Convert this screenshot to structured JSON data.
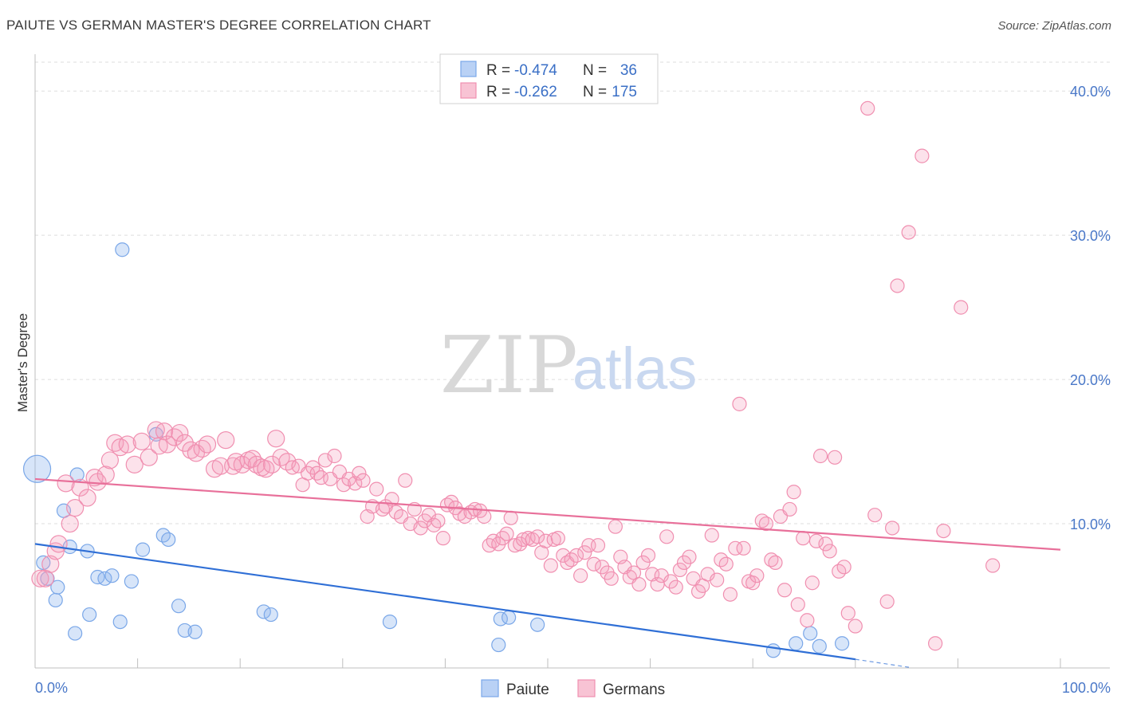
{
  "header": {
    "title": "PAIUTE VS GERMAN MASTER'S DEGREE CORRELATION CHART",
    "source": "Source: ZipAtlas.com"
  },
  "watermark": {
    "zip": "ZIP",
    "atlas": "atlas"
  },
  "legend": {
    "r_label": "R = ",
    "n_label": "N = ",
    "rows": [
      {
        "series": "Paiute",
        "r": "-0.474",
        "n": "36",
        "color": "#7aa7e8",
        "fill": "#b9d1f5"
      },
      {
        "series": "Germans",
        "r": "-0.262",
        "n": "175",
        "color": "#f08fb0",
        "fill": "#f8c3d4"
      }
    ]
  },
  "chart_data": {
    "type": "scatter",
    "title": "PAIUTE VS GERMAN MASTER'S DEGREE CORRELATION CHART",
    "xlabel": "",
    "ylabel": "Master's Degree",
    "xlim": [
      0,
      100
    ],
    "ylim": [
      0,
      42
    ],
    "x_ticks": [
      "0.0%",
      "100.0%"
    ],
    "y_ticks": [
      {
        "value": 10,
        "label": "10.0%"
      },
      {
        "value": 20,
        "label": "20.0%"
      },
      {
        "value": 30,
        "label": "30.0%"
      },
      {
        "value": 40,
        "label": "40.0%"
      }
    ],
    "grid": "horizontal dashed",
    "legend_position": "top-center",
    "series": [
      {
        "name": "Paiute",
        "color": "#6e9ee6",
        "trend": {
          "x": [
            0,
            80
          ],
          "y": [
            8.6,
            0.6
          ],
          "dashed_to": [
            100,
            -0.5
          ],
          "color": "#2f6fd6"
        },
        "points": [
          [
            0.2,
            13.8
          ],
          [
            0.8,
            7.3
          ],
          [
            1.2,
            6.2
          ],
          [
            2.0,
            4.7
          ],
          [
            2.2,
            5.6
          ],
          [
            2.8,
            10.9
          ],
          [
            3.4,
            8.4
          ],
          [
            3.9,
            2.4
          ],
          [
            4.1,
            13.4
          ],
          [
            5.1,
            8.1
          ],
          [
            5.3,
            3.7
          ],
          [
            6.1,
            6.3
          ],
          [
            6.8,
            6.2
          ],
          [
            7.5,
            6.4
          ],
          [
            8.3,
            3.2
          ],
          [
            8.5,
            29.0
          ],
          [
            9.4,
            6.0
          ],
          [
            10.5,
            8.2
          ],
          [
            11.8,
            16.2
          ],
          [
            12.5,
            9.2
          ],
          [
            13.0,
            8.9
          ],
          [
            14.0,
            4.3
          ],
          [
            14.6,
            2.6
          ],
          [
            15.6,
            2.5
          ],
          [
            22.3,
            3.9
          ],
          [
            23.0,
            3.7
          ],
          [
            34.6,
            3.2
          ],
          [
            45.2,
            1.6
          ],
          [
            45.4,
            3.4
          ],
          [
            46.2,
            3.5
          ],
          [
            49.0,
            3.0
          ],
          [
            72.0,
            1.2
          ],
          [
            74.2,
            1.7
          ],
          [
            75.6,
            2.4
          ],
          [
            76.5,
            1.5
          ],
          [
            78.7,
            1.7
          ]
        ]
      },
      {
        "name": "Germans",
        "color": "#f08fb0",
        "trend": {
          "x": [
            0,
            100
          ],
          "y": [
            13.1,
            8.2
          ],
          "color": "#e8709a"
        },
        "points": [
          [
            0.5,
            6.2
          ],
          [
            1.0,
            6.2
          ],
          [
            1.5,
            7.2
          ],
          [
            2.0,
            8.1
          ],
          [
            2.3,
            8.6
          ],
          [
            3.0,
            12.8
          ],
          [
            3.4,
            10.0
          ],
          [
            3.9,
            11.1
          ],
          [
            4.4,
            12.5
          ],
          [
            5.1,
            11.8
          ],
          [
            5.8,
            13.2
          ],
          [
            6.1,
            12.9
          ],
          [
            6.9,
            13.4
          ],
          [
            7.3,
            14.4
          ],
          [
            7.8,
            15.6
          ],
          [
            8.3,
            15.3
          ],
          [
            9.0,
            15.5
          ],
          [
            9.7,
            14.1
          ],
          [
            10.4,
            15.7
          ],
          [
            11.1,
            14.6
          ],
          [
            11.8,
            16.5
          ],
          [
            12.1,
            15.4
          ],
          [
            12.6,
            16.4
          ],
          [
            12.9,
            15.5
          ],
          [
            13.6,
            16.0
          ],
          [
            14.1,
            16.3
          ],
          [
            14.6,
            15.6
          ],
          [
            15.2,
            15.1
          ],
          [
            15.7,
            14.9
          ],
          [
            16.3,
            15.2
          ],
          [
            16.8,
            15.5
          ],
          [
            17.5,
            13.8
          ],
          [
            18.1,
            14.0
          ],
          [
            18.6,
            15.8
          ],
          [
            19.3,
            14.0
          ],
          [
            19.6,
            14.3
          ],
          [
            20.2,
            14.1
          ],
          [
            20.8,
            14.4
          ],
          [
            21.2,
            14.5
          ],
          [
            21.6,
            14.1
          ],
          [
            22.1,
            13.9
          ],
          [
            22.5,
            13.8
          ],
          [
            23.1,
            14.1
          ],
          [
            23.5,
            15.9
          ],
          [
            24.0,
            14.6
          ],
          [
            24.6,
            14.3
          ],
          [
            25.1,
            13.9
          ],
          [
            25.7,
            14.0
          ],
          [
            26.1,
            12.7
          ],
          [
            26.6,
            13.5
          ],
          [
            27.1,
            13.9
          ],
          [
            27.5,
            13.5
          ],
          [
            27.9,
            13.2
          ],
          [
            28.3,
            14.4
          ],
          [
            28.8,
            13.1
          ],
          [
            29.2,
            14.7
          ],
          [
            29.7,
            13.6
          ],
          [
            30.1,
            12.7
          ],
          [
            30.6,
            13.1
          ],
          [
            31.2,
            12.8
          ],
          [
            31.6,
            13.5
          ],
          [
            32.0,
            13.0
          ],
          [
            32.4,
            10.5
          ],
          [
            32.9,
            11.2
          ],
          [
            33.3,
            12.4
          ],
          [
            33.9,
            11.0
          ],
          [
            34.2,
            11.2
          ],
          [
            34.8,
            11.7
          ],
          [
            35.2,
            10.8
          ],
          [
            35.7,
            10.5
          ],
          [
            36.1,
            13.0
          ],
          [
            36.6,
            10.0
          ],
          [
            37.0,
            11.0
          ],
          [
            37.6,
            9.7
          ],
          [
            38.0,
            10.2
          ],
          [
            38.4,
            10.6
          ],
          [
            38.9,
            9.9
          ],
          [
            39.3,
            10.2
          ],
          [
            39.8,
            9.0
          ],
          [
            40.2,
            11.3
          ],
          [
            40.6,
            11.5
          ],
          [
            41.0,
            11.1
          ],
          [
            41.4,
            10.7
          ],
          [
            41.9,
            10.5
          ],
          [
            42.5,
            10.8
          ],
          [
            42.9,
            11.0
          ],
          [
            43.4,
            10.9
          ],
          [
            43.8,
            10.5
          ],
          [
            44.3,
            8.5
          ],
          [
            44.7,
            8.8
          ],
          [
            45.2,
            8.6
          ],
          [
            45.6,
            9.0
          ],
          [
            46.0,
            9.3
          ],
          [
            46.4,
            10.4
          ],
          [
            46.8,
            8.5
          ],
          [
            47.3,
            8.6
          ],
          [
            47.6,
            8.9
          ],
          [
            48.1,
            9.0
          ],
          [
            48.5,
            8.9
          ],
          [
            49.0,
            9.1
          ],
          [
            49.4,
            8.0
          ],
          [
            49.8,
            8.8
          ],
          [
            50.3,
            7.1
          ],
          [
            50.6,
            8.9
          ],
          [
            51.0,
            9.0
          ],
          [
            51.5,
            7.8
          ],
          [
            51.9,
            7.3
          ],
          [
            52.3,
            7.5
          ],
          [
            52.8,
            7.8
          ],
          [
            53.2,
            6.4
          ],
          [
            53.6,
            8.0
          ],
          [
            54.0,
            8.5
          ],
          [
            54.5,
            7.2
          ],
          [
            54.9,
            8.5
          ],
          [
            55.3,
            7.0
          ],
          [
            55.8,
            6.6
          ],
          [
            56.2,
            6.2
          ],
          [
            56.6,
            9.8
          ],
          [
            57.1,
            7.7
          ],
          [
            57.5,
            7.0
          ],
          [
            58.0,
            6.3
          ],
          [
            58.4,
            6.6
          ],
          [
            58.9,
            5.8
          ],
          [
            59.3,
            7.3
          ],
          [
            59.8,
            7.8
          ],
          [
            60.2,
            6.5
          ],
          [
            60.7,
            5.8
          ],
          [
            61.1,
            6.4
          ],
          [
            61.6,
            9.1
          ],
          [
            62.0,
            6.0
          ],
          [
            62.5,
            5.6
          ],
          [
            62.9,
            6.8
          ],
          [
            63.3,
            7.3
          ],
          [
            63.8,
            7.7
          ],
          [
            64.2,
            6.2
          ],
          [
            64.7,
            5.3
          ],
          [
            65.1,
            5.7
          ],
          [
            65.6,
            6.5
          ],
          [
            66.0,
            9.2
          ],
          [
            66.5,
            6.1
          ],
          [
            66.9,
            7.5
          ],
          [
            67.4,
            7.2
          ],
          [
            67.8,
            5.1
          ],
          [
            68.3,
            8.3
          ],
          [
            68.7,
            18.3
          ],
          [
            69.1,
            8.3
          ],
          [
            69.6,
            6.0
          ],
          [
            70.0,
            5.9
          ],
          [
            70.4,
            6.4
          ],
          [
            70.9,
            10.2
          ],
          [
            71.3,
            10.0
          ],
          [
            71.8,
            7.5
          ],
          [
            72.2,
            7.3
          ],
          [
            72.7,
            10.5
          ],
          [
            73.1,
            5.4
          ],
          [
            73.6,
            11.0
          ],
          [
            74.0,
            12.2
          ],
          [
            74.4,
            4.4
          ],
          [
            74.9,
            9.0
          ],
          [
            75.3,
            3.3
          ],
          [
            75.8,
            5.9
          ],
          [
            76.2,
            8.8
          ],
          [
            76.6,
            14.7
          ],
          [
            77.1,
            8.6
          ],
          [
            77.5,
            8.1
          ],
          [
            78.0,
            14.6
          ],
          [
            78.4,
            6.7
          ],
          [
            78.9,
            7.0
          ],
          [
            79.3,
            3.8
          ],
          [
            80.0,
            2.9
          ],
          [
            81.2,
            38.8
          ],
          [
            81.9,
            10.6
          ],
          [
            83.1,
            4.6
          ],
          [
            83.6,
            9.7
          ],
          [
            84.1,
            26.5
          ],
          [
            85.2,
            30.2
          ],
          [
            86.5,
            35.5
          ],
          [
            87.8,
            1.7
          ],
          [
            88.6,
            9.5
          ],
          [
            90.3,
            25.0
          ],
          [
            93.4,
            7.1
          ]
        ]
      }
    ]
  },
  "bottom_legend": [
    "Paiute",
    "Germans"
  ]
}
